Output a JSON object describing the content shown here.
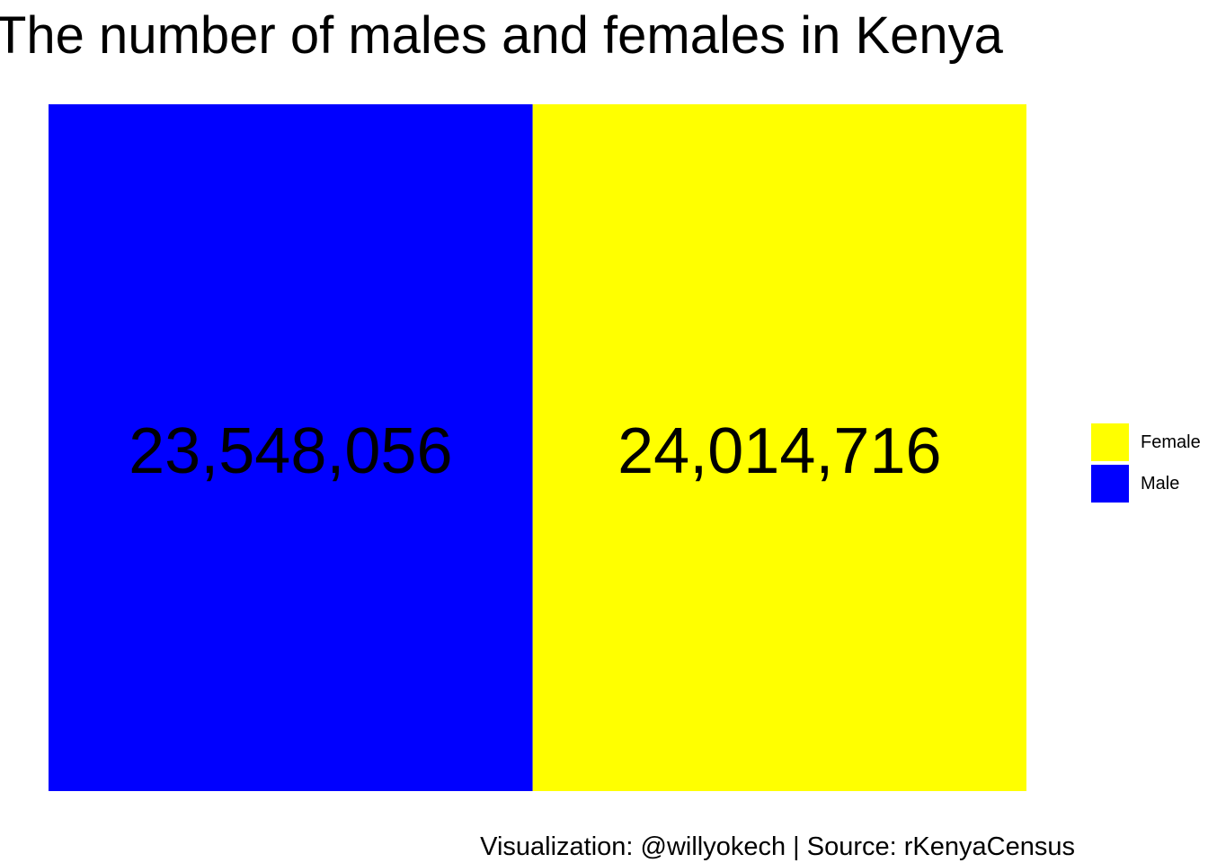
{
  "chart_data": {
    "type": "treemap",
    "title": "The number of males and females in Kenya",
    "caption": "Visualization: @willyokech | Source: rKenyaCensus",
    "categories": [
      "Male",
      "Female"
    ],
    "values": [
      23548056,
      24014716
    ],
    "labels": [
      "23,548,056",
      "24,014,716"
    ],
    "colors": [
      "#0000ff",
      "#ffff00"
    ],
    "legend": {
      "placement": "right",
      "items": [
        {
          "label": "Female",
          "color": "#ffff00"
        },
        {
          "label": "Male",
          "color": "#0000ff"
        }
      ]
    },
    "grid": false
  }
}
